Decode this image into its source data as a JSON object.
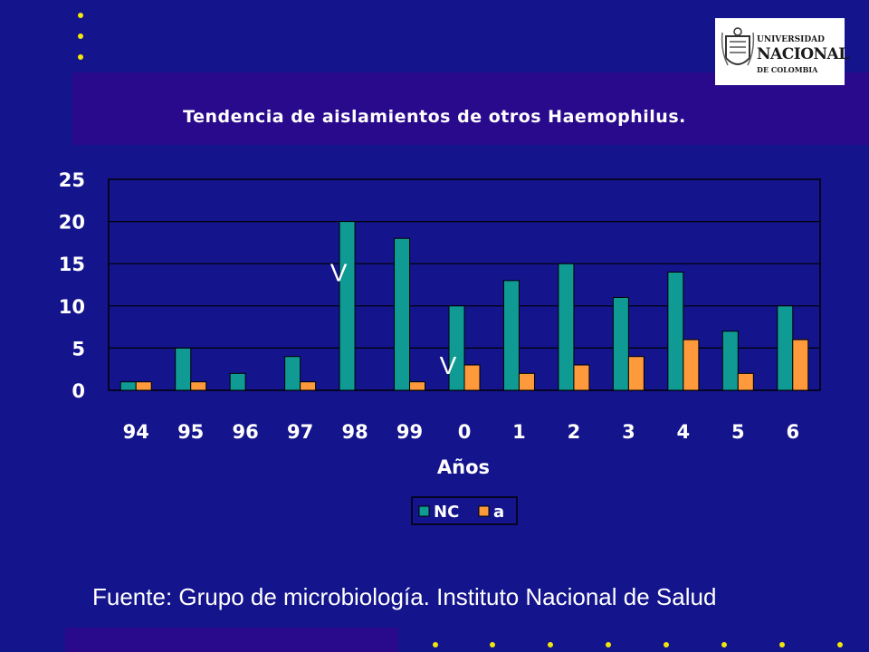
{
  "colors": {
    "background": "#14148c",
    "band": "#2a0a8c",
    "bullet": "#f0e60a",
    "nc": "#0f9b93",
    "a": "#ff9a3c"
  },
  "logo": {
    "line1": "UNIVERSIDAD",
    "line2": "NACIONAL",
    "line3": "DE COLOMBIA",
    "icon": "university-seal-icon"
  },
  "footer": {
    "source": "Fuente: Grupo de microbiología. Instituto Nacional de Salud"
  },
  "chart_data": {
    "type": "bar",
    "title": "Tendencia de aislamientos de otros Haemophilus.",
    "xlabel": "Años",
    "ylabel": "",
    "ylim": [
      0,
      25
    ],
    "yticks": [
      0,
      5,
      10,
      15,
      20,
      25
    ],
    "grid": true,
    "legend": "bottom-center",
    "categories": [
      "94",
      "95",
      "96",
      "97",
      "98",
      "99",
      "0",
      "1",
      "2",
      "3",
      "4",
      "5",
      "6"
    ],
    "series": [
      {
        "name": "NC",
        "color": "#0f9b93",
        "values": [
          1,
          5,
          2,
          4,
          20,
          18,
          10,
          13,
          15,
          11,
          14,
          7,
          10
        ]
      },
      {
        "name": "a",
        "color": "#ff9a3c",
        "values": [
          1,
          1,
          0,
          1,
          0,
          1,
          3,
          2,
          3,
          4,
          6,
          2,
          6
        ]
      }
    ],
    "annotations": [
      {
        "text": "V",
        "category": "98",
        "value": 14
      },
      {
        "text": "V",
        "category": "0",
        "value": 3
      }
    ]
  }
}
